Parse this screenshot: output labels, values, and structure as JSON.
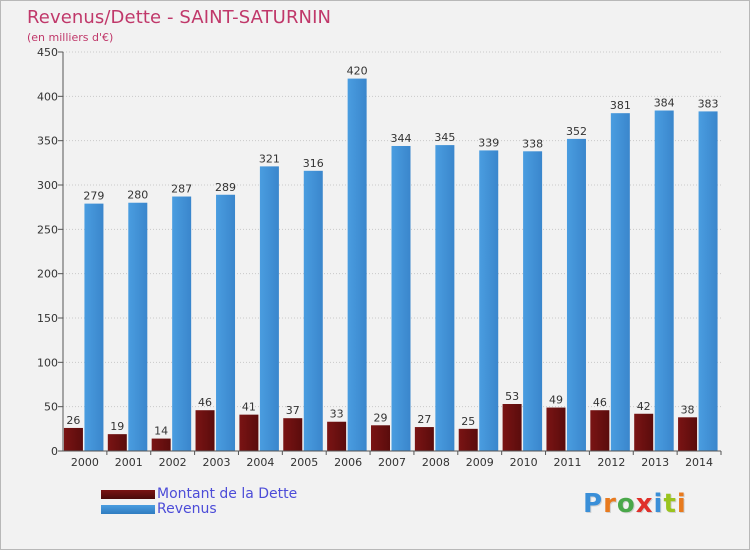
{
  "chart_data": {
    "type": "bar",
    "title": "Revenus/Dette - SAINT-SATURNIN",
    "subtitle": "(en milliers d'€)",
    "categories": [
      "2000",
      "2001",
      "2002",
      "2003",
      "2004",
      "2005",
      "2006",
      "2007",
      "2008",
      "2009",
      "2010",
      "2011",
      "2012",
      "2013",
      "2014"
    ],
    "series": [
      {
        "name": "Montant de la Dette",
        "color": "#7a1414",
        "values": [
          26,
          19,
          14,
          46,
          41,
          37,
          33,
          29,
          27,
          25,
          53,
          49,
          46,
          42,
          38
        ]
      },
      {
        "name": "Revenus",
        "color": "#4a9de0",
        "values": [
          279,
          280,
          287,
          289,
          321,
          316,
          420,
          344,
          345,
          339,
          338,
          352,
          381,
          384,
          383
        ]
      }
    ],
    "ylim": [
      0,
      450
    ],
    "yticks": [
      "0",
      "50",
      "100",
      "150",
      "200",
      "250",
      "300",
      "350",
      "400",
      "450"
    ],
    "grid": true,
    "legend": "bottom-left"
  },
  "logo": {
    "letters": [
      {
        "ch": "P",
        "color": "#3a8fd8"
      },
      {
        "ch": "r",
        "color": "#e87a1e"
      },
      {
        "ch": "o",
        "color": "#4aa84a"
      },
      {
        "ch": "x",
        "color": "#e0302a"
      },
      {
        "ch": "i",
        "color": "#3a8fd8"
      },
      {
        "ch": "t",
        "color": "#9ac41e"
      },
      {
        "ch": "i",
        "color": "#e87a1e"
      }
    ]
  }
}
